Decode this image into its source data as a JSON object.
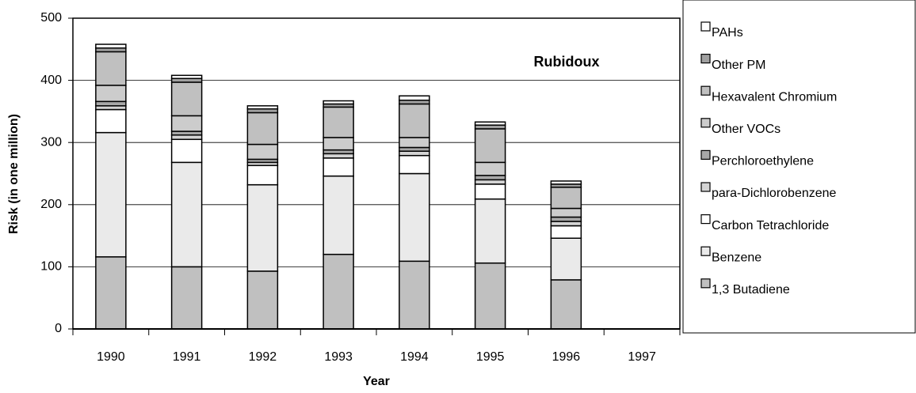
{
  "chart_data": {
    "type": "stacked_bar",
    "title": "Rubidoux",
    "x_label": "Year",
    "y_label": "Risk (in one million)",
    "categories": [
      "1990",
      "1991",
      "1992",
      "1993",
      "1994",
      "1995",
      "1996",
      "1997"
    ],
    "series": [
      {
        "name": "1,3 Butadiene",
        "color": "#c0c0c0",
        "values": [
          116,
          100,
          93,
          120,
          109,
          106,
          79,
          null
        ]
      },
      {
        "name": "Benzene",
        "color": "#eaeaea",
        "values": [
          200,
          168,
          139,
          126,
          141,
          103,
          67,
          null
        ]
      },
      {
        "name": "Carbon Tetrachloride",
        "color": "#ffffff",
        "values": [
          37,
          37,
          31,
          29,
          29,
          24,
          20,
          null
        ]
      },
      {
        "name": "para-Dichlorobenzene",
        "color": "#d4d4d4",
        "values": [
          6,
          7,
          5,
          7,
          7,
          7,
          7,
          null
        ]
      },
      {
        "name": "Perchloroethylene",
        "color": "#a8a8a8",
        "values": [
          7,
          6,
          5,
          6,
          6,
          7,
          7,
          null
        ]
      },
      {
        "name": "Other VOCs",
        "color": "#cccccc",
        "values": [
          26,
          25,
          24,
          20,
          16,
          21,
          14,
          null
        ]
      },
      {
        "name": "Hexavalent Chromium",
        "color": "#c0c0c0",
        "values": [
          54,
          54,
          51,
          49,
          54,
          54,
          34,
          null
        ]
      },
      {
        "name": "Other PM",
        "color": "#a0a0a0",
        "values": [
          6,
          6,
          6,
          5,
          6,
          6,
          5,
          null
        ]
      },
      {
        "name": "PAHs",
        "color": "#ffffff",
        "values": [
          6,
          5,
          5,
          5,
          7,
          5,
          5,
          null
        ]
      }
    ],
    "ylim": [
      0,
      500
    ],
    "yticks": [
      0,
      100,
      200,
      300,
      400,
      500
    ],
    "grid": true,
    "legend": "right"
  }
}
